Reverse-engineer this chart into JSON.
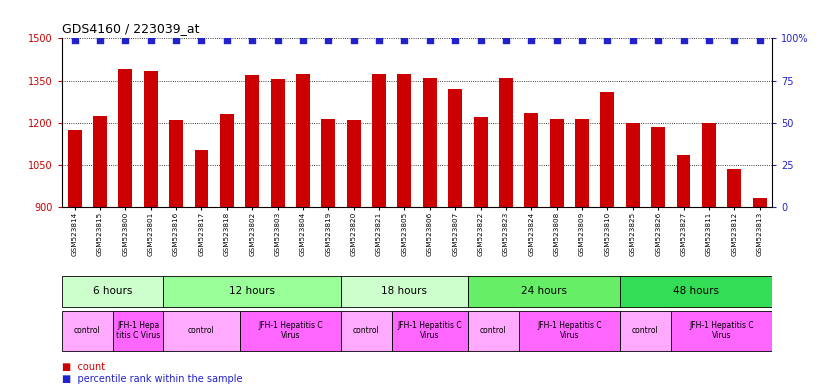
{
  "title": "GDS4160 / 223039_at",
  "samples": [
    "GSM523814",
    "GSM523815",
    "GSM523800",
    "GSM523801",
    "GSM523816",
    "GSM523817",
    "GSM523818",
    "GSM523802",
    "GSM523803",
    "GSM523804",
    "GSM523819",
    "GSM523820",
    "GSM523821",
    "GSM523805",
    "GSM523806",
    "GSM523807",
    "GSM523822",
    "GSM523823",
    "GSM523824",
    "GSM523808",
    "GSM523809",
    "GSM523810",
    "GSM523825",
    "GSM523826",
    "GSM523827",
    "GSM523811",
    "GSM523812",
    "GSM523813"
  ],
  "counts": [
    1175,
    1225,
    1390,
    1385,
    1210,
    1105,
    1230,
    1370,
    1355,
    1375,
    1215,
    1210,
    1375,
    1375,
    1360,
    1320,
    1220,
    1360,
    1235,
    1215,
    1215,
    1310,
    1200,
    1185,
    1085,
    1200,
    1035,
    935
  ],
  "percentile_ranks": [
    99,
    99,
    99,
    99,
    99,
    99,
    99,
    99,
    99,
    99,
    99,
    99,
    99,
    99,
    99,
    99,
    99,
    99,
    99,
    99,
    99,
    99,
    99,
    99,
    99,
    99,
    99,
    99
  ],
  "bar_color": "#cc0000",
  "dot_color": "#2222cc",
  "ylim_left": [
    900,
    1500
  ],
  "ylim_right": [
    0,
    100
  ],
  "yticks_left": [
    900,
    1050,
    1200,
    1350,
    1500
  ],
  "yticks_right": [
    0,
    25,
    50,
    75,
    100
  ],
  "ytick_right_labels": [
    "0",
    "25",
    "50",
    "75",
    "100%"
  ],
  "time_groups": [
    {
      "label": "6 hours",
      "start": 0,
      "end": 4,
      "color": "#ccffcc"
    },
    {
      "label": "12 hours",
      "start": 4,
      "end": 11,
      "color": "#99ff99"
    },
    {
      "label": "18 hours",
      "start": 11,
      "end": 16,
      "color": "#ccffcc"
    },
    {
      "label": "24 hours",
      "start": 16,
      "end": 22,
      "color": "#66ee66"
    },
    {
      "label": "48 hours",
      "start": 22,
      "end": 28,
      "color": "#33dd55"
    }
  ],
  "infection_groups": [
    {
      "label": "control",
      "start": 0,
      "end": 2,
      "color": "#ffaaff"
    },
    {
      "label": "JFH-1 Hepa\ntitis C Virus",
      "start": 2,
      "end": 4,
      "color": "#ff66ff"
    },
    {
      "label": "control",
      "start": 4,
      "end": 7,
      "color": "#ffaaff"
    },
    {
      "label": "JFH-1 Hepatitis C\nVirus",
      "start": 7,
      "end": 11,
      "color": "#ff66ff"
    },
    {
      "label": "control",
      "start": 11,
      "end": 13,
      "color": "#ffaaff"
    },
    {
      "label": "JFH-1 Hepatitis C\nVirus",
      "start": 13,
      "end": 16,
      "color": "#ff66ff"
    },
    {
      "label": "control",
      "start": 16,
      "end": 18,
      "color": "#ffaaff"
    },
    {
      "label": "JFH-1 Hepatitis C\nVirus",
      "start": 18,
      "end": 22,
      "color": "#ff66ff"
    },
    {
      "label": "control",
      "start": 22,
      "end": 24,
      "color": "#ffaaff"
    },
    {
      "label": "JFH-1 Hepatitis C\nVirus",
      "start": 24,
      "end": 28,
      "color": "#ff66ff"
    }
  ],
  "bg_color": "#ffffff",
  "plot_bg_color": "#ffffff",
  "grid_color": "#000000",
  "label_color_left": "#cc0000",
  "label_color_right": "#2222cc"
}
